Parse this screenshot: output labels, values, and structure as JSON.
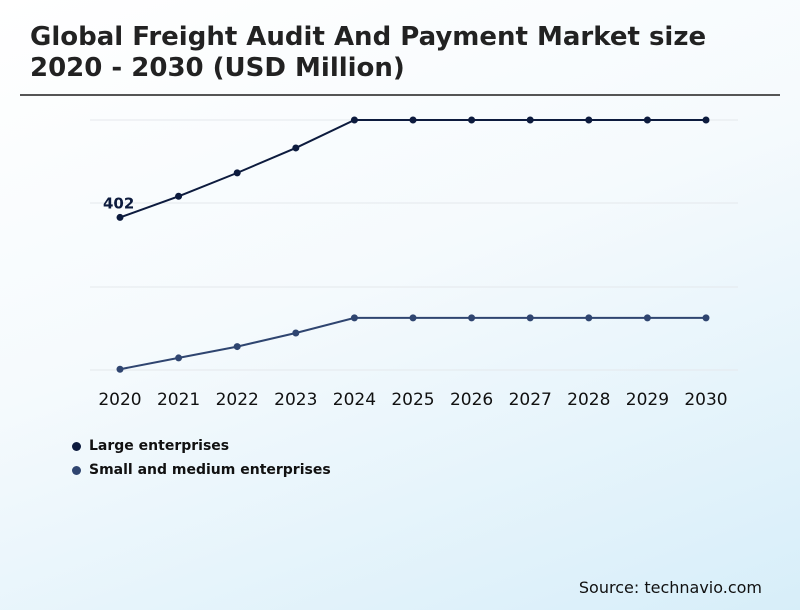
{
  "title": "Global Freight Audit And Payment Market size 2020 - 2030 (USD Million)",
  "source": "Source: technavio.com",
  "chart_data": {
    "type": "line",
    "categories": [
      "2020",
      "2021",
      "2022",
      "2023",
      "2024",
      "2025",
      "2026",
      "2027",
      "2028",
      "2029",
      "2030"
    ],
    "series": [
      {
        "name": "Large enterprises",
        "color": "#0d1b3e",
        "values": [
          402,
          430,
          461,
          494,
          531,
          531,
          531,
          531,
          531,
          531,
          531
        ]
      },
      {
        "name": "Small and medium enterprises",
        "color": "#2f4570",
        "values": [
          201,
          216,
          231,
          249,
          269,
          269,
          269,
          269,
          269,
          269,
          269
        ]
      }
    ],
    "data_labels": [
      {
        "series": 0,
        "index": 0,
        "text": "402"
      }
    ],
    "ylim": [
      200,
      531
    ],
    "grid": true,
    "legend_position": "bottom-left"
  }
}
